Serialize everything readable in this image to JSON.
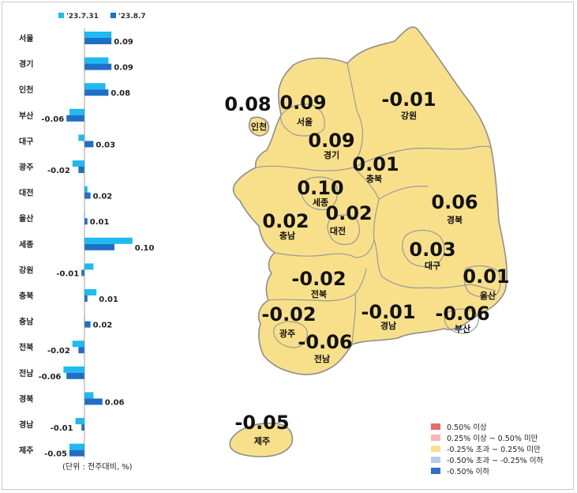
{
  "chart_data": {
    "type": "bar",
    "orientation": "horizontal",
    "series": [
      {
        "name": "'23.7.31",
        "color": "#1ebbf0",
        "values": [
          0.09,
          0.08,
          0.07,
          -0.05,
          -0.02,
          -0.04,
          0.01,
          0.0,
          0.16,
          0.03,
          0.04,
          0.0,
          -0.04,
          -0.07,
          0.03,
          -0.03,
          -0.05
        ]
      },
      {
        "name": "'23.8.7",
        "color": "#1f6fc6",
        "values": [
          0.09,
          0.09,
          0.08,
          -0.06,
          0.03,
          -0.02,
          0.02,
          0.01,
          0.1,
          -0.01,
          0.01,
          0.02,
          -0.02,
          -0.06,
          0.06,
          -0.01,
          -0.05
        ]
      }
    ],
    "categories": [
      "서울",
      "경기",
      "인천",
      "부산",
      "대구",
      "광주",
      "대전",
      "울산",
      "세종",
      "강원",
      "충북",
      "충남",
      "전북",
      "전남",
      "경북",
      "경남",
      "제주"
    ],
    "value_labels": [
      "0.09",
      "0.09",
      "0.08",
      "-0.06",
      "0.03",
      "-0.02",
      "0.02",
      "0.01",
      "0.10",
      "-0.01",
      "0.01",
      "0.02",
      "-0.02",
      "-0.06",
      "0.06",
      "-0.01",
      "-0.05"
    ],
    "unit_note": "(단위 : 전주대비, %)",
    "legend_position": "top"
  },
  "map": {
    "fill": "#f8e08a",
    "regions": [
      {
        "name": "인천",
        "value": "0.08"
      },
      {
        "name": "서울",
        "value": "0.09"
      },
      {
        "name": "강원",
        "value": "-0.01"
      },
      {
        "name": "경기",
        "value": "0.09"
      },
      {
        "name": "충북",
        "value": "0.01"
      },
      {
        "name": "세종",
        "value": "0.10"
      },
      {
        "name": "충남",
        "value": "0.02"
      },
      {
        "name": "대전",
        "value": "0.02"
      },
      {
        "name": "경북",
        "value": "0.06"
      },
      {
        "name": "대구",
        "value": "0.03"
      },
      {
        "name": "울산",
        "value": "0.01"
      },
      {
        "name": "전북",
        "value": "-0.02"
      },
      {
        "name": "광주",
        "value": "-0.02"
      },
      {
        "name": "경남",
        "value": "-0.01"
      },
      {
        "name": "부산",
        "value": "-0.06"
      },
      {
        "name": "전남",
        "value": "-0.06"
      },
      {
        "name": "제주",
        "value": "-0.05"
      }
    ],
    "legend": [
      {
        "label": "0.50% 이상",
        "color": "#e66a6a"
      },
      {
        "label": "0.25% 이상 ~ 0.50% 미만",
        "color": "#f5b8b8"
      },
      {
        "label": "-0.25% 초과 ~ 0.25% 미만",
        "color": "#f8e08a"
      },
      {
        "label": "-0.50% 초과 ~ -0.25% 이하",
        "color": "#b8cbe8"
      },
      {
        "label": "-0.50% 이하",
        "color": "#2e6fc9"
      }
    ]
  }
}
